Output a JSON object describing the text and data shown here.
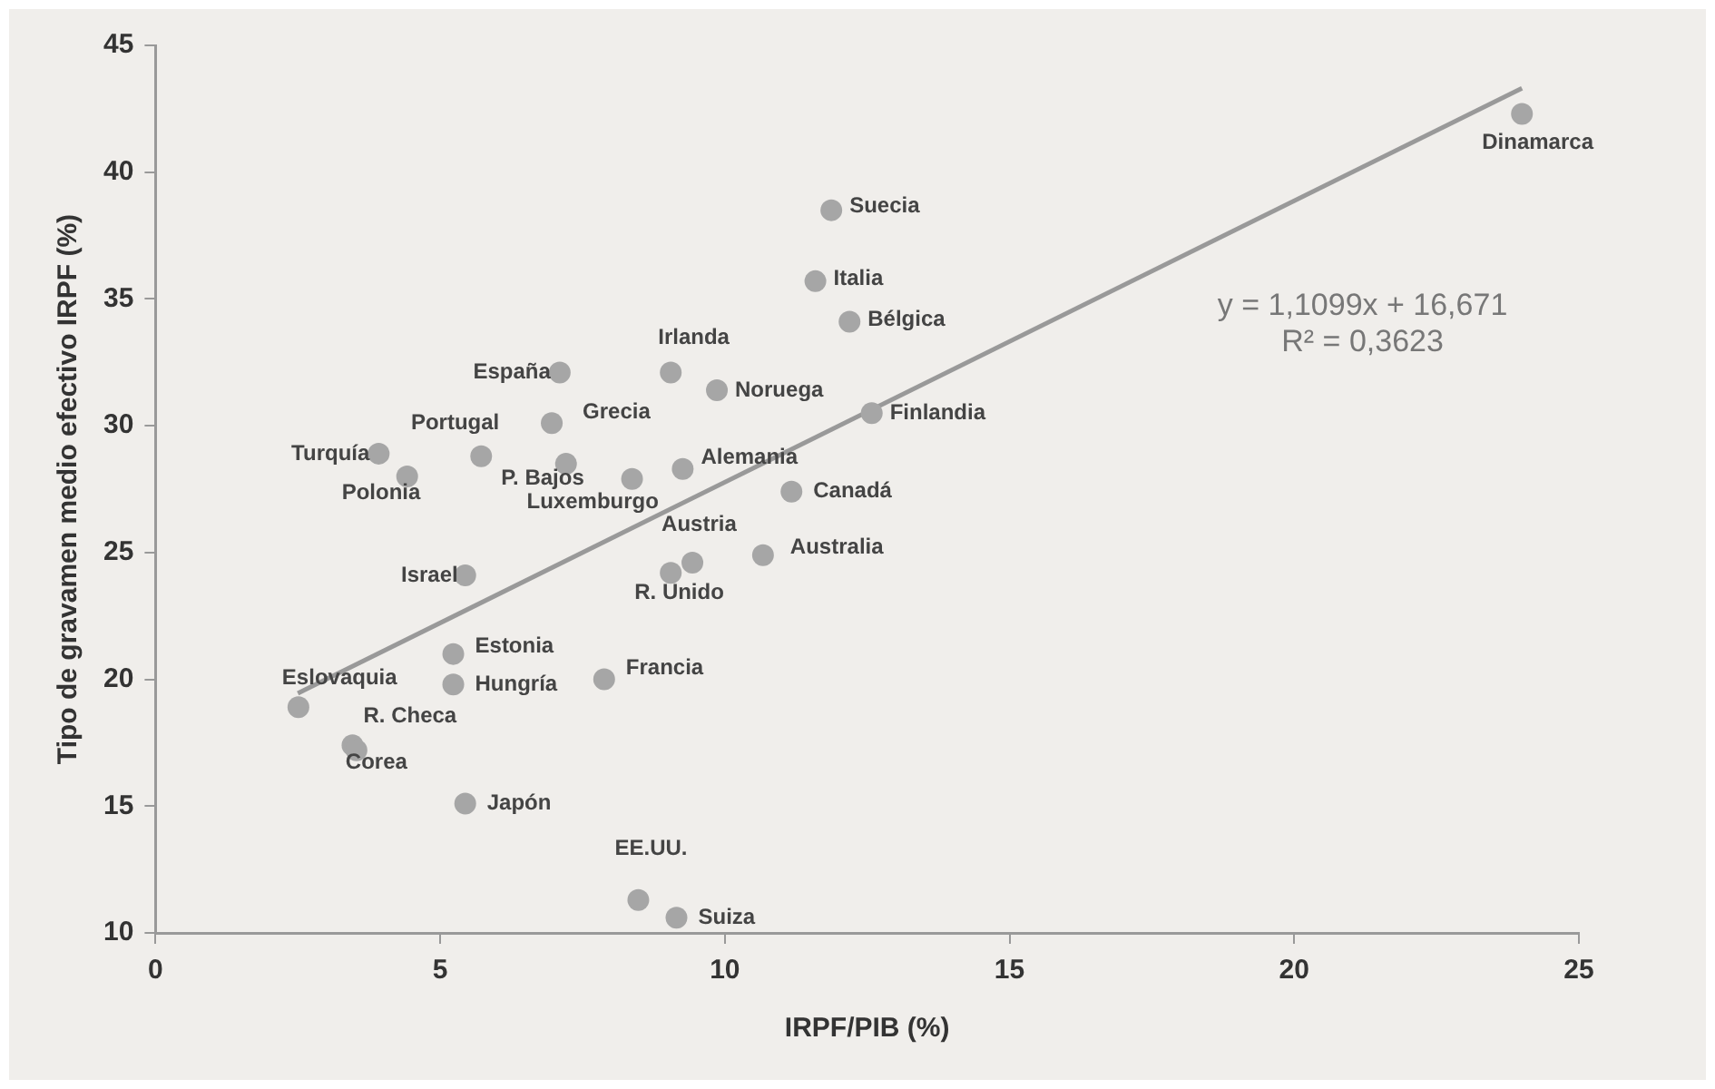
{
  "chart_data": {
    "type": "scatter",
    "xlabel": "IRPF/PIB (%)",
    "ylabel": "Tipo de gravamen medio efectivo IRPF (%)",
    "xlim": [
      0,
      25
    ],
    "ylim": [
      10,
      45
    ],
    "xticks": [
      0,
      5,
      10,
      15,
      20,
      25
    ],
    "yticks": [
      10,
      15,
      20,
      25,
      30,
      35,
      40,
      45
    ],
    "grid": false,
    "legend": false,
    "series": [
      {
        "marker": "circle",
        "color": "#a6a6a6",
        "x": [
          24.0,
          11.87,
          11.59,
          12.19,
          9.05,
          7.1,
          9.86,
          12.58,
          6.96,
          5.72,
          7.21,
          8.37,
          9.26,
          3.92,
          4.42,
          11.17,
          9.43,
          9.05,
          10.67,
          5.44,
          5.23,
          5.23,
          7.88,
          2.51,
          3.46,
          3.53,
          5.44,
          8.48,
          9.15
        ],
        "values": [
          42.3,
          38.5,
          35.7,
          34.1,
          32.1,
          32.1,
          31.4,
          30.5,
          30.1,
          28.8,
          28.5,
          27.9,
          28.3,
          28.9,
          28.0,
          27.4,
          24.6,
          24.2,
          24.9,
          24.1,
          21.0,
          19.8,
          20.0,
          18.9,
          17.4,
          17.2,
          15.1,
          11.3,
          10.6
        ]
      },
      {
        "type": "line",
        "color": "#999999",
        "x": [
          2.5,
          24.0
        ],
        "values": [
          19.45,
          43.31
        ]
      }
    ],
    "annotations": [
      {
        "text": "Dinamarca",
        "x": 24.0,
        "y": 42.3
      },
      {
        "text": "Suecia",
        "x": 11.87,
        "y": 38.5
      },
      {
        "text": "Italia",
        "x": 11.59,
        "y": 35.7
      },
      {
        "text": "Bélgica",
        "x": 12.19,
        "y": 34.1
      },
      {
        "text": "Irlanda",
        "x": 9.05,
        "y": 32.1
      },
      {
        "text": "España",
        "x": 7.1,
        "y": 32.1
      },
      {
        "text": "Noruega",
        "x": 9.86,
        "y": 31.4
      },
      {
        "text": "Finlandia",
        "x": 12.58,
        "y": 30.5
      },
      {
        "text": "Grecia",
        "x": 6.96,
        "y": 30.1
      },
      {
        "text": "Portugal",
        "x": 5.72,
        "y": 28.8
      },
      {
        "text": "P. Bajos",
        "x": 7.21,
        "y": 28.5
      },
      {
        "text": "Luxemburgo",
        "x": 8.37,
        "y": 27.9
      },
      {
        "text": "Alemania",
        "x": 9.26,
        "y": 28.3
      },
      {
        "text": "Turquía",
        "x": 3.92,
        "y": 28.9
      },
      {
        "text": "Polonia",
        "x": 4.42,
        "y": 28.0
      },
      {
        "text": "Canadá",
        "x": 11.17,
        "y": 27.4
      },
      {
        "text": "Austria",
        "x": 9.43,
        "y": 24.6
      },
      {
        "text": "R. Unido",
        "x": 9.05,
        "y": 24.2
      },
      {
        "text": "Australia",
        "x": 10.67,
        "y": 24.9
      },
      {
        "text": "Israel",
        "x": 5.44,
        "y": 24.1
      },
      {
        "text": "Estonia",
        "x": 5.23,
        "y": 21.0
      },
      {
        "text": "Hungría",
        "x": 5.23,
        "y": 19.8
      },
      {
        "text": "Francia",
        "x": 7.88,
        "y": 20.0
      },
      {
        "text": "Eslovaquia",
        "x": 2.51,
        "y": 18.9
      },
      {
        "text": "R. Checa",
        "x": 3.46,
        "y": 17.4
      },
      {
        "text": "Corea",
        "x": 3.53,
        "y": 17.2
      },
      {
        "text": "Japón",
        "x": 5.44,
        "y": 15.1
      },
      {
        "text": "EE.UU.",
        "x": 8.48,
        "y": 11.3
      },
      {
        "text": "Suiza",
        "x": 9.15,
        "y": 10.6
      },
      "y = 1,1099x + 16,671",
      "R² = 0,3623"
    ]
  }
}
